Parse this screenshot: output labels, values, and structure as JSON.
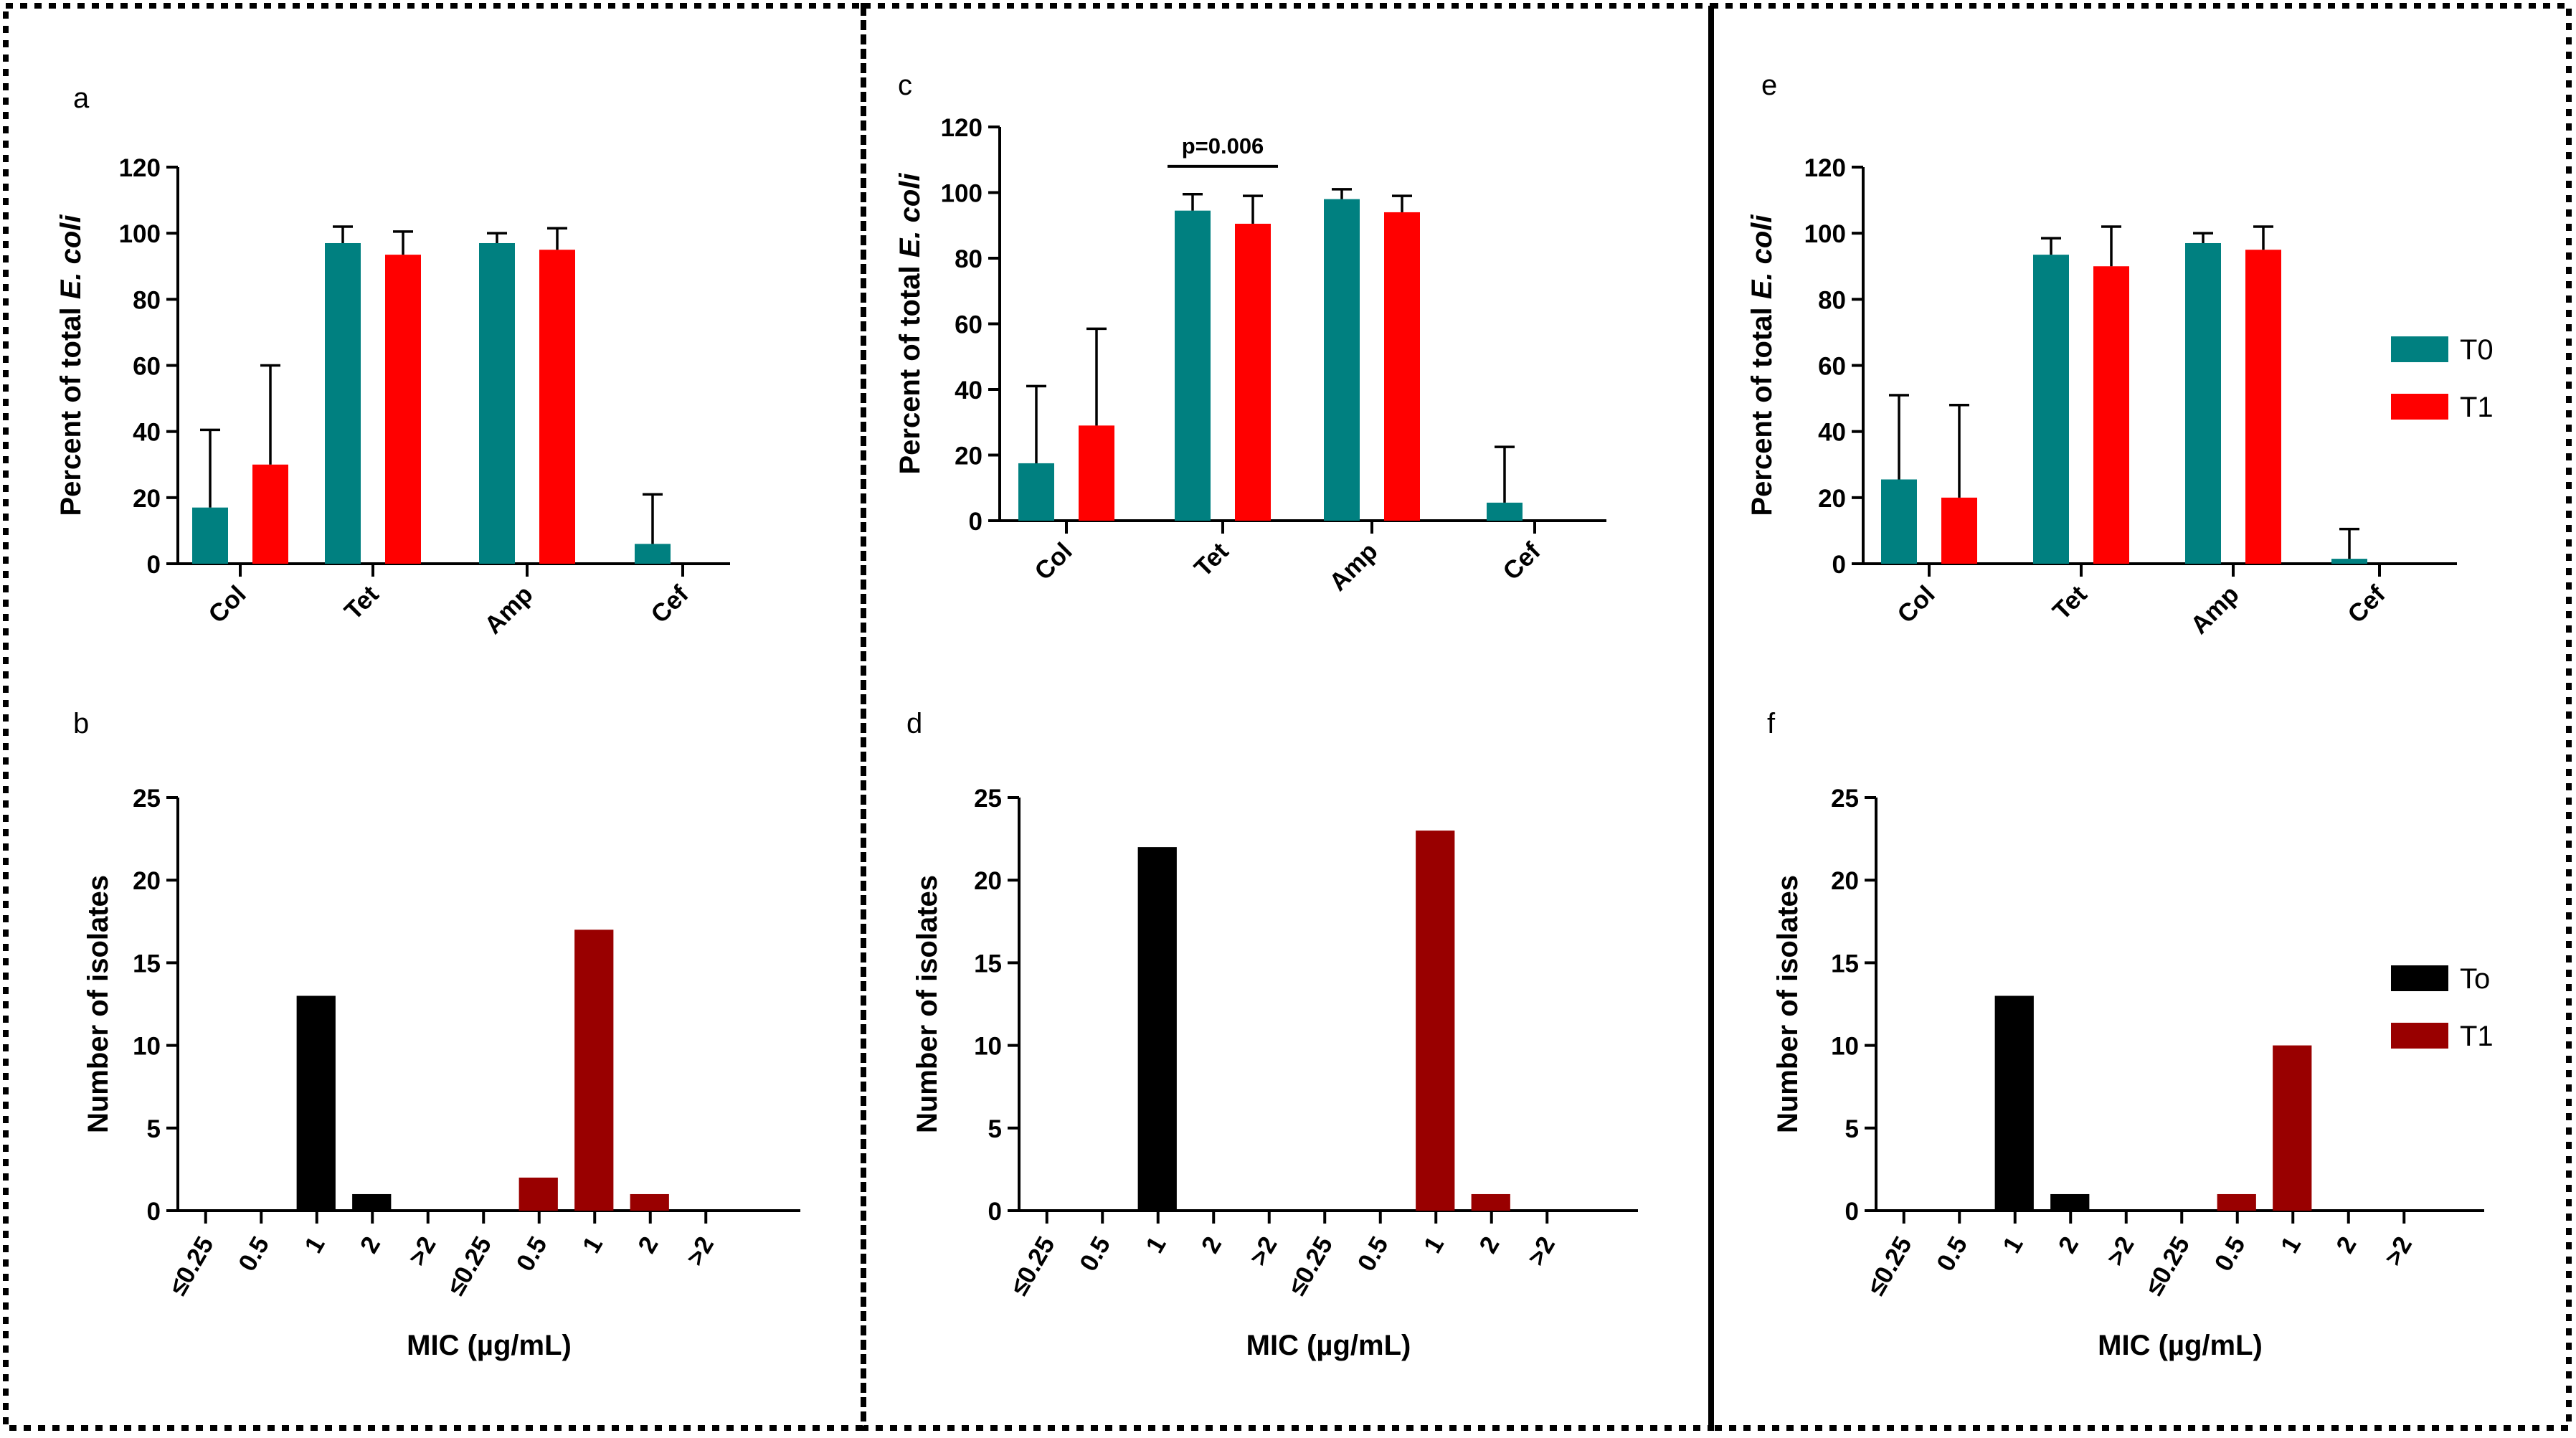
{
  "chart_data": [
    {
      "panel": "a",
      "type": "bar",
      "ylabel_prefix": "Percent of total ",
      "ylabel_italic": "E. coli",
      "ylim": [
        0,
        120
      ],
      "yticks": [
        "0",
        "20",
        "40",
        "60",
        "80",
        "100",
        "120"
      ],
      "categories": [
        "Col",
        "Tet",
        "Amp",
        "Cef"
      ],
      "series": [
        {
          "name": "T0",
          "color": "#008080",
          "values": [
            17,
            97,
            97,
            6
          ],
          "errors": [
            23.5,
            5,
            3,
            15
          ]
        },
        {
          "name": "T1",
          "color": "#ff0000",
          "values": [
            30,
            93.5,
            95,
            0
          ],
          "errors": [
            30,
            7,
            6.5,
            0
          ]
        }
      ]
    },
    {
      "panel": "b",
      "type": "bar",
      "ylabel": "Number of isolates",
      "xlabel": "MIC (µg/mL)",
      "ylim": [
        0,
        25
      ],
      "yticks": [
        "0",
        "5",
        "10",
        "15",
        "20",
        "25"
      ],
      "categories": [
        "≤0.25",
        "0.5",
        "1",
        "2",
        ">2",
        "≤0.25",
        "0.5",
        "1",
        "2",
        ">2"
      ],
      "series": [
        {
          "name": "To",
          "color": "#000000",
          "values": [
            0,
            0,
            13,
            1,
            0,
            0,
            0,
            0,
            0,
            0
          ]
        },
        {
          "name": "T1",
          "color": "#990000",
          "values": [
            0,
            0,
            0,
            0,
            0,
            0,
            2,
            17,
            1,
            0
          ]
        }
      ]
    },
    {
      "panel": "c",
      "type": "bar",
      "ylabel_prefix": "Percent of total ",
      "ylabel_italic": "E. coli",
      "ylim": [
        0,
        120
      ],
      "yticks": [
        "0",
        "20",
        "40",
        "60",
        "80",
        "100",
        "120"
      ],
      "categories": [
        "Col",
        "Tet",
        "Amp",
        "Cef"
      ],
      "annotation": {
        "text": "p=0.006",
        "between": "Tet T0 vs T1"
      },
      "series": [
        {
          "name": "T0",
          "color": "#008080",
          "values": [
            17.5,
            94.5,
            98,
            5.5
          ],
          "errors": [
            23.5,
            5,
            3,
            17
          ]
        },
        {
          "name": "T1",
          "color": "#ff0000",
          "values": [
            29,
            90.5,
            94,
            0
          ],
          "errors": [
            29.5,
            8.5,
            5,
            0
          ]
        }
      ]
    },
    {
      "panel": "d",
      "type": "bar",
      "ylabel": "Number of isolates",
      "xlabel": "MIC (µg/mL)",
      "ylim": [
        0,
        25
      ],
      "yticks": [
        "0",
        "5",
        "10",
        "15",
        "20",
        "25"
      ],
      "categories": [
        "≤0.25",
        "0.5",
        "1",
        "2",
        ">2",
        "≤0.25",
        "0.5",
        "1",
        "2",
        ">2"
      ],
      "series": [
        {
          "name": "To",
          "color": "#000000",
          "values": [
            0,
            0,
            22,
            0,
            0,
            0,
            0,
            0,
            0,
            0
          ]
        },
        {
          "name": "T1",
          "color": "#990000",
          "values": [
            0,
            0,
            0,
            0,
            0,
            0,
            0,
            23,
            1,
            0
          ]
        }
      ]
    },
    {
      "panel": "e",
      "type": "bar",
      "ylabel_prefix": "Percent of total ",
      "ylabel_italic": "E. coli",
      "ylim": [
        0,
        120
      ],
      "yticks": [
        "0",
        "20",
        "40",
        "60",
        "80",
        "100",
        "120"
      ],
      "categories": [
        "Col",
        "Tet",
        "Amp",
        "Cef"
      ],
      "legend": {
        "position": "right",
        "items": [
          {
            "label": "T0",
            "color": "#008080"
          },
          {
            "label": "T1",
            "color": "#ff0000"
          }
        ]
      },
      "series": [
        {
          "name": "T0",
          "color": "#008080",
          "values": [
            25.5,
            93.5,
            97,
            1.5
          ],
          "errors": [
            25.5,
            5,
            3,
            9
          ]
        },
        {
          "name": "T1",
          "color": "#ff0000",
          "values": [
            20,
            90,
            95,
            0
          ],
          "errors": [
            28,
            12,
            7,
            0
          ]
        }
      ]
    },
    {
      "panel": "f",
      "type": "bar",
      "ylabel": "Number of isolates",
      "xlabel": "MIC (µg/mL)",
      "ylim": [
        0,
        25
      ],
      "yticks": [
        "0",
        "5",
        "10",
        "15",
        "20",
        "25"
      ],
      "categories": [
        "≤0.25",
        "0.5",
        "1",
        "2",
        ">2",
        "≤0.25",
        "0.5",
        "1",
        "2",
        ">2"
      ],
      "legend": {
        "position": "right",
        "items": [
          {
            "label": "To",
            "color": "#000000"
          },
          {
            "label": "T1",
            "color": "#990000"
          }
        ]
      },
      "series": [
        {
          "name": "To",
          "color": "#000000",
          "values": [
            0,
            0,
            13,
            1,
            0,
            0,
            0,
            0,
            0,
            0
          ]
        },
        {
          "name": "T1",
          "color": "#990000",
          "values": [
            0,
            0,
            0,
            0,
            0,
            0,
            1,
            10,
            0,
            0
          ]
        }
      ]
    }
  ]
}
